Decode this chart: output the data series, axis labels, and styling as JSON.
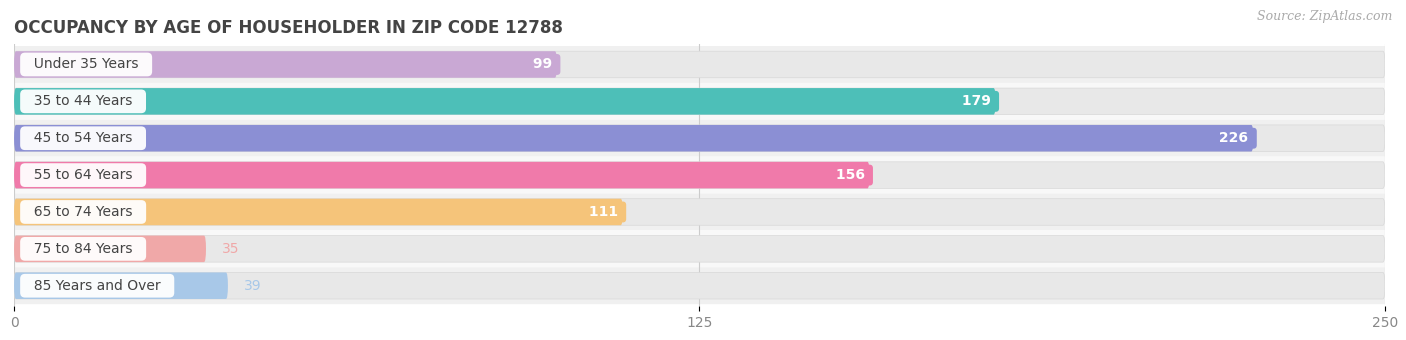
{
  "title": "OCCUPANCY BY AGE OF HOUSEHOLDER IN ZIP CODE 12788",
  "source": "Source: ZipAtlas.com",
  "categories": [
    "Under 35 Years",
    "35 to 44 Years",
    "45 to 54 Years",
    "55 to 64 Years",
    "65 to 74 Years",
    "75 to 84 Years",
    "85 Years and Over"
  ],
  "values": [
    99,
    179,
    226,
    156,
    111,
    35,
    39
  ],
  "bar_colors": [
    "#c9a8d4",
    "#4dbfb8",
    "#8b8fd4",
    "#f07aaa",
    "#f5c47a",
    "#f0a8a8",
    "#a8c8e8"
  ],
  "bar_bg_color": "#ebebeb",
  "xlim": [
    0,
    250
  ],
  "xticks": [
    0,
    125,
    250
  ],
  "title_fontsize": 12,
  "source_fontsize": 9,
  "tick_fontsize": 10,
  "category_fontsize": 10,
  "value_fontsize": 10,
  "background_color": "#ffffff",
  "bar_height": 0.72,
  "row_bg_even": "#f0f0f0",
  "row_bg_odd": "#f8f8f8",
  "inner_label_threshold": 60,
  "label_inside_color": "#ffffff",
  "label_outside_color_indices": [
    4,
    5,
    6
  ]
}
